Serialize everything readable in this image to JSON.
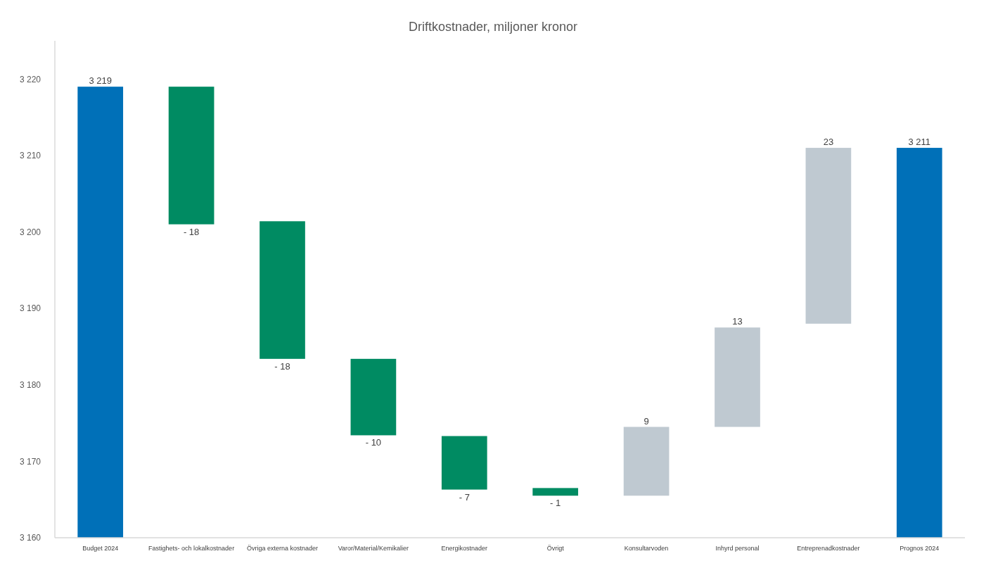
{
  "chart_data": {
    "type": "bar",
    "title": "Driftkostnader, miljoner kronor",
    "categories": [
      "Budget 2024",
      "Fastighets- och lokalkostnader",
      "Övriga externa kostnader",
      "Varor/Material/Kemikalier",
      "Energikostnader",
      "Övrigt",
      "Konsultarvoden",
      "Inhyrd personal",
      "Entreprenadkostnader",
      "Prognos 2024"
    ],
    "values": [
      3219,
      -18,
      -18,
      -10,
      -7,
      -1,
      9,
      13,
      23,
      3211
    ],
    "base": [
      null,
      3219,
      3201.4,
      3183.4,
      3173.3,
      3166.5,
      3165.5,
      3174.5,
      3188,
      null
    ],
    "colors": [
      "#0070b8",
      "#008b62",
      "#008b62",
      "#008b62",
      "#008b62",
      "#008b62",
      "#bfc9d1",
      "#bfc9d1",
      "#bfc9d1",
      "#0070b8"
    ],
    "value_labels": [
      "3 219",
      "- 18",
      "- 18",
      "- 10",
      "- 7",
      "- 1",
      "9",
      "13",
      "23",
      "3 211"
    ],
    "ylim": [
      3160,
      3225
    ],
    "yticks": [
      {
        "value": 3160,
        "label": "3 160"
      },
      {
        "value": 3170,
        "label": "3 170"
      },
      {
        "value": 3180,
        "label": "3 180"
      },
      {
        "value": 3190,
        "label": "3 190"
      },
      {
        "value": 3200,
        "label": "3 200"
      },
      {
        "value": 3210,
        "label": "3 210"
      },
      {
        "value": 3220,
        "label": "3 220"
      }
    ],
    "grid": false
  }
}
